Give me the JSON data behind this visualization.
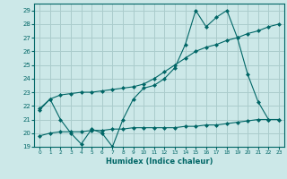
{
  "title": "",
  "xlabel": "Humidex (Indice chaleur)",
  "bg_color": "#cce8e8",
  "grid_color": "#aacccc",
  "line_color": "#006666",
  "xlim": [
    -0.5,
    23.5
  ],
  "ylim": [
    19,
    29.5
  ],
  "yticks": [
    19,
    20,
    21,
    22,
    23,
    24,
    25,
    26,
    27,
    28,
    29
  ],
  "xticks": [
    0,
    1,
    2,
    3,
    4,
    5,
    6,
    7,
    8,
    9,
    10,
    11,
    12,
    13,
    14,
    15,
    16,
    17,
    18,
    19,
    20,
    21,
    22,
    23
  ],
  "series1_x": [
    0,
    1,
    2,
    3,
    4,
    5,
    6,
    7,
    8,
    9,
    10,
    11,
    12,
    13,
    14,
    15,
    16,
    17,
    18,
    19,
    20,
    21,
    22,
    23
  ],
  "series1_y": [
    21.7,
    22.5,
    21.0,
    20.0,
    19.2,
    20.3,
    20.0,
    19.0,
    21.0,
    22.5,
    23.3,
    23.5,
    24.0,
    24.8,
    26.5,
    29.0,
    27.8,
    28.5,
    29.0,
    27.0,
    24.3,
    22.3,
    21.0,
    21.0
  ],
  "series2_x": [
    0,
    1,
    2,
    3,
    4,
    5,
    6,
    7,
    8,
    9,
    10,
    11,
    12,
    13,
    14,
    15,
    16,
    17,
    18,
    19,
    20,
    21,
    22,
    23
  ],
  "series2_y": [
    21.8,
    22.5,
    22.8,
    22.9,
    23.0,
    23.0,
    23.1,
    23.2,
    23.3,
    23.4,
    23.6,
    24.0,
    24.5,
    25.0,
    25.5,
    26.0,
    26.3,
    26.5,
    26.8,
    27.0,
    27.3,
    27.5,
    27.8,
    28.0
  ],
  "series3_x": [
    0,
    1,
    2,
    3,
    4,
    5,
    6,
    7,
    8,
    9,
    10,
    11,
    12,
    13,
    14,
    15,
    16,
    17,
    18,
    19,
    20,
    21,
    22,
    23
  ],
  "series3_y": [
    19.8,
    20.0,
    20.1,
    20.1,
    20.1,
    20.2,
    20.2,
    20.3,
    20.3,
    20.4,
    20.4,
    20.4,
    20.4,
    20.4,
    20.5,
    20.5,
    20.6,
    20.6,
    20.7,
    20.8,
    20.9,
    21.0,
    21.0,
    21.0
  ]
}
